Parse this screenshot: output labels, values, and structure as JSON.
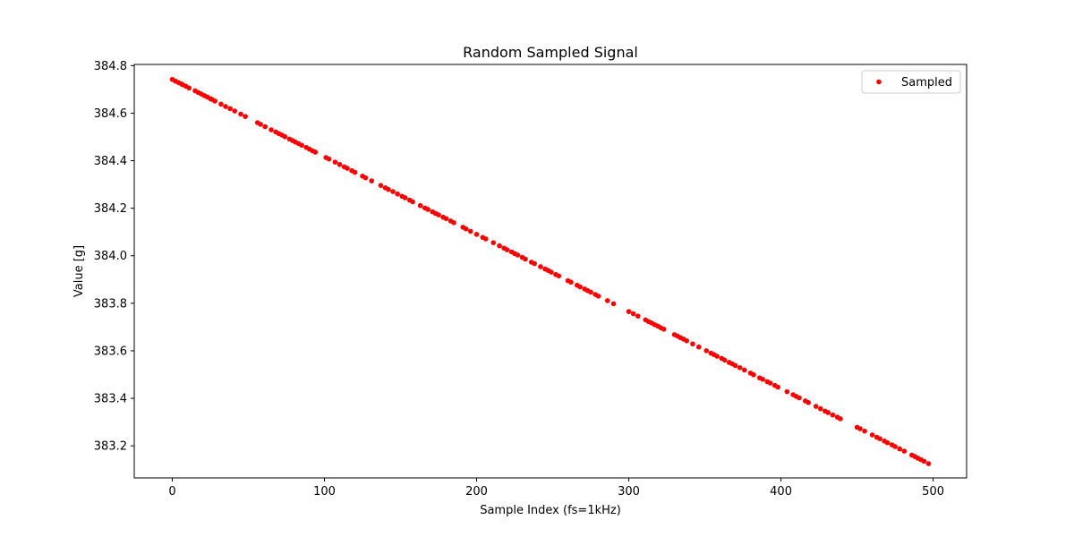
{
  "chart_data": {
    "type": "scatter",
    "title": "Random Sampled Signal",
    "xlabel": "Sample Index (fs=1kHz)",
    "ylabel": "Value [g]",
    "xlim": [
      -25,
      522
    ],
    "ylim": [
      383.065,
      384.805
    ],
    "x_ticks": [
      0,
      100,
      200,
      300,
      400,
      500
    ],
    "y_ticks": [
      383.2,
      383.4,
      383.6,
      383.8,
      384.0,
      384.2,
      384.4,
      384.6,
      384.8
    ],
    "y_tick_decimals": 1,
    "grid": false,
    "legend_position": "top-right",
    "series": [
      {
        "name": "Sampled",
        "color": "#ff0000",
        "marker": "circle",
        "line": {
          "x_start": 0,
          "y_start": 384.742,
          "x_end": 497,
          "y_end": 383.122
        },
        "x": [
          0,
          2,
          4,
          6,
          7,
          9,
          11,
          15,
          17,
          19,
          21,
          23,
          25,
          26,
          28,
          32,
          35,
          38,
          41,
          45,
          48,
          56,
          58,
          61,
          65,
          68,
          70,
          72,
          74,
          77,
          79,
          81,
          83,
          85,
          88,
          90,
          92,
          94,
          101,
          103,
          107,
          110,
          113,
          115,
          118,
          120,
          125,
          127,
          131,
          137,
          140,
          142,
          145,
          148,
          151,
          153,
          156,
          158,
          163,
          166,
          168,
          171,
          173,
          175,
          178,
          180,
          183,
          185,
          191,
          193,
          196,
          200,
          204,
          206,
          211,
          215,
          218,
          220,
          223,
          225,
          227,
          230,
          232,
          236,
          238,
          242,
          245,
          247,
          249,
          252,
          254,
          260,
          262,
          266,
          268,
          271,
          273,
          275,
          278,
          280,
          286,
          290,
          300,
          303,
          306,
          311,
          313,
          315,
          317,
          319,
          321,
          323,
          330,
          332,
          334,
          336,
          338,
          342,
          346,
          351,
          354,
          356,
          358,
          361,
          363,
          366,
          368,
          370,
          373,
          376,
          380,
          382,
          386,
          388,
          391,
          393,
          396,
          398,
          404,
          408,
          410,
          412,
          416,
          418,
          423,
          426,
          429,
          431,
          434,
          437,
          439,
          450,
          452,
          455,
          460,
          463,
          465,
          468,
          470,
          473,
          475,
          478,
          481,
          486,
          488,
          490,
          492,
          494,
          497
        ],
        "y": [
          384.742,
          384.735,
          384.729,
          384.723,
          384.719,
          384.713,
          384.706,
          384.694,
          384.687,
          384.681,
          384.674,
          384.668,
          384.661,
          384.658,
          384.651,
          384.638,
          384.628,
          384.619,
          384.609,
          384.596,
          384.586,
          384.56,
          384.553,
          384.543,
          384.53,
          384.521,
          384.514,
          384.508,
          384.501,
          384.491,
          384.485,
          384.478,
          384.472,
          384.465,
          384.456,
          384.449,
          384.442,
          384.436,
          384.413,
          384.407,
          384.394,
          384.384,
          384.374,
          384.368,
          384.358,
          384.351,
          384.335,
          384.328,
          384.315,
          384.296,
          384.286,
          384.279,
          384.27,
          384.26,
          384.25,
          384.244,
          384.234,
          384.227,
          384.211,
          384.201,
          384.195,
          384.185,
          384.178,
          384.172,
          384.162,
          384.156,
          384.146,
          384.139,
          384.12,
          384.113,
          384.103,
          384.09,
          384.077,
          384.071,
          384.055,
          384.042,
          384.032,
          384.025,
          384.016,
          384.009,
          384.003,
          383.993,
          383.986,
          383.973,
          383.967,
          383.954,
          383.944,
          383.938,
          383.931,
          383.921,
          383.915,
          383.895,
          383.889,
          383.876,
          383.869,
          383.86,
          383.853,
          383.847,
          383.837,
          383.83,
          383.811,
          383.798,
          383.765,
          383.756,
          383.746,
          383.73,
          383.723,
          383.717,
          383.71,
          383.704,
          383.697,
          383.691,
          383.668,
          383.662,
          383.655,
          383.649,
          383.642,
          383.629,
          383.616,
          383.6,
          383.59,
          383.584,
          383.577,
          383.568,
          383.561,
          383.551,
          383.545,
          383.538,
          383.529,
          383.519,
          383.506,
          383.499,
          383.486,
          383.48,
          383.47,
          383.464,
          383.454,
          383.447,
          383.428,
          383.415,
          383.408,
          383.402,
          383.389,
          383.382,
          383.366,
          383.356,
          383.346,
          383.34,
          383.33,
          383.321,
          383.314,
          383.278,
          383.272,
          383.262,
          383.246,
          383.236,
          383.23,
          383.22,
          383.213,
          383.204,
          383.197,
          383.187,
          383.178,
          383.161,
          383.155,
          383.148,
          383.142,
          383.135,
          383.125
        ]
      }
    ]
  }
}
